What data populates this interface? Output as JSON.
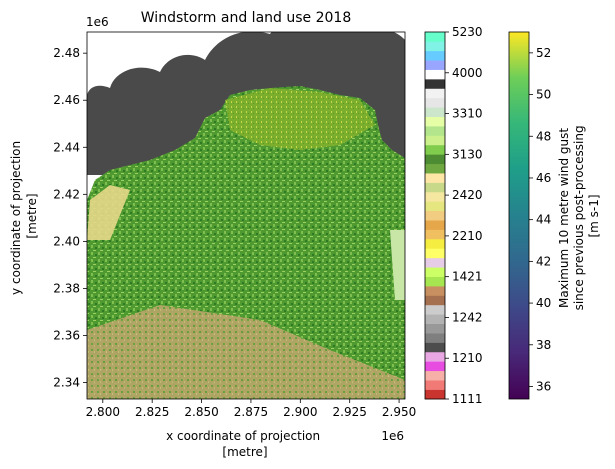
{
  "chart_data": {
    "type": "heatmap",
    "title": "Windstorm and land use 2018",
    "xlabel": [
      "x coordinate of projection",
      "[metre]"
    ],
    "ylabel": [
      "y coordinate of projection",
      "[metre]"
    ],
    "x_offset_label": "1e6",
    "y_offset_label": "1e6",
    "xlim": [
      2.792,
      2.953
    ],
    "ylim": [
      2.333,
      2.489
    ],
    "x_ticks": [
      2.8,
      2.825,
      2.85,
      2.875,
      2.9,
      2.925,
      2.95
    ],
    "x_tick_labels": [
      "2.800",
      "2.825",
      "2.850",
      "2.875",
      "2.900",
      "2.925",
      "2.950"
    ],
    "y_ticks": [
      2.34,
      2.36,
      2.38,
      2.4,
      2.42,
      2.44,
      2.46,
      2.48
    ],
    "y_tick_labels": [
      "2.34",
      "2.36",
      "2.38",
      "2.40",
      "2.42",
      "2.44",
      "2.46",
      "2.48"
    ],
    "landuse_colorbar": {
      "tick_labels": [
        "1111",
        "1210",
        "1242",
        "1421",
        "2210",
        "2420",
        "3130",
        "3310",
        "4000",
        "5230"
      ],
      "colors": [
        "#c9342f",
        "#f27a76",
        "#f7b0a8",
        "#e84de2",
        "#e9a8e4",
        "#4d4d4d",
        "#7f7f7f",
        "#999999",
        "#b3b3b3",
        "#cccccc",
        "#a57050",
        "#c89060",
        "#a6e650",
        "#ccff66",
        "#e6cce6",
        "#ffff66",
        "#f5ee40",
        "#f0c060",
        "#e6a64a",
        "#f2cc80",
        "#e6e680",
        "#f5e6a0",
        "#c9d98a",
        "#ffe6a6",
        "#6fa840",
        "#4d8c33",
        "#80cc4d",
        "#ccf08c",
        "#b3e68c",
        "#e6ffa6",
        "#cce6cc",
        "#e6e6e6",
        "#f2f2f2",
        "#333333",
        "#ffffff",
        "#99a6ff",
        "#66ccff",
        "#80f2e6",
        "#66ffcc"
      ]
    },
    "wind_colorbar": {
      "label": [
        "Maximum 10 metre wind gust",
        "since previous post-processing",
        "[m s-1]"
      ],
      "range": [
        35.4,
        53.0
      ],
      "ticks": [
        36,
        38,
        40,
        42,
        44,
        46,
        48,
        50,
        52
      ],
      "colormap": "viridis"
    }
  }
}
